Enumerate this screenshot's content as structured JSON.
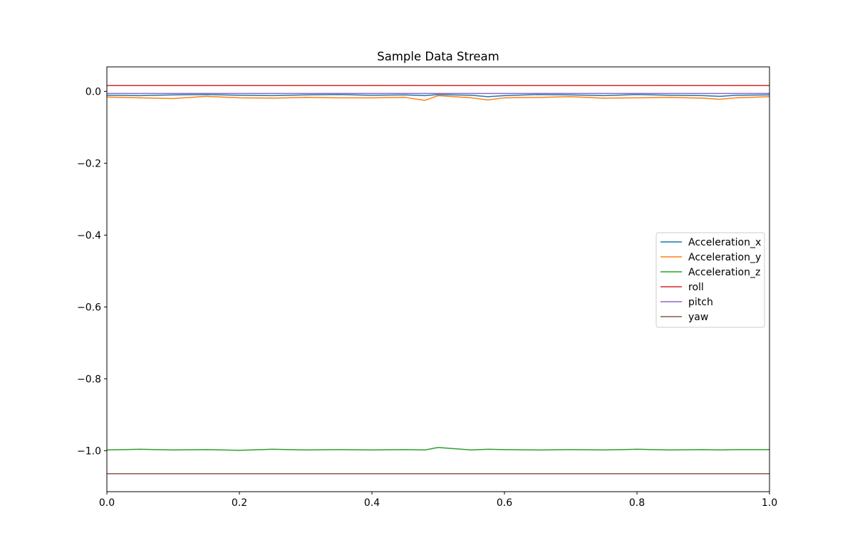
{
  "chart_data": {
    "type": "line",
    "title": "Sample Data Stream",
    "xlabel": "",
    "ylabel": "",
    "xlim": [
      0.0,
      1.0
    ],
    "ylim": [
      -1.114,
      0.068
    ],
    "xticks": [
      0.0,
      0.2,
      0.4,
      0.6,
      0.8,
      1.0
    ],
    "xtick_labels": [
      "0.0",
      "0.2",
      "0.4",
      "0.6",
      "0.8",
      "1.0"
    ],
    "yticks": [
      0.0,
      -0.2,
      -0.4,
      -0.6,
      -0.8,
      -1.0
    ],
    "ytick_labels": [
      "0.0",
      "−0.2",
      "−0.4",
      "−0.6",
      "−0.8",
      "−1.0"
    ],
    "grid": false,
    "legend_position": "center-right",
    "x": [
      0.0,
      0.05,
      0.1,
      0.15,
      0.2,
      0.25,
      0.3,
      0.35,
      0.4,
      0.45,
      0.48,
      0.5,
      0.55,
      0.575,
      0.6,
      0.65,
      0.7,
      0.75,
      0.8,
      0.85,
      0.9,
      0.925,
      0.95,
      1.0
    ],
    "series": [
      {
        "name": "Acceleration_x",
        "color": "#1f77b4",
        "values": [
          -0.011,
          -0.012,
          -0.01,
          -0.009,
          -0.011,
          -0.012,
          -0.01,
          -0.009,
          -0.011,
          -0.01,
          -0.012,
          -0.009,
          -0.011,
          -0.015,
          -0.012,
          -0.009,
          -0.01,
          -0.012,
          -0.009,
          -0.011,
          -0.012,
          -0.014,
          -0.011,
          -0.01
        ]
      },
      {
        "name": "Acceleration_y",
        "color": "#ff7f0e",
        "values": [
          -0.016,
          -0.018,
          -0.02,
          -0.014,
          -0.018,
          -0.019,
          -0.017,
          -0.018,
          -0.018,
          -0.017,
          -0.025,
          -0.012,
          -0.018,
          -0.024,
          -0.018,
          -0.017,
          -0.015,
          -0.019,
          -0.018,
          -0.017,
          -0.019,
          -0.022,
          -0.018,
          -0.015
        ]
      },
      {
        "name": "Acceleration_z",
        "color": "#2ca02c",
        "values": [
          -0.998,
          -0.996,
          -0.998,
          -0.997,
          -0.999,
          -0.996,
          -0.998,
          -0.997,
          -0.998,
          -0.997,
          -0.998,
          -0.991,
          -0.998,
          -0.996,
          -0.997,
          -0.998,
          -0.997,
          -0.998,
          -0.996,
          -0.998,
          -0.997,
          -0.998,
          -0.997,
          -0.997
        ]
      },
      {
        "name": "roll",
        "color": "#d62728",
        "values": [
          0.016,
          0.016,
          0.016,
          0.016,
          0.016,
          0.016,
          0.016,
          0.016,
          0.016,
          0.016,
          0.016,
          0.016,
          0.016,
          0.016,
          0.016,
          0.016,
          0.016,
          0.016,
          0.016,
          0.016,
          0.016,
          0.016,
          0.016,
          0.016
        ]
      },
      {
        "name": "pitch",
        "color": "#9467bd",
        "values": [
          -0.006,
          -0.006,
          -0.006,
          -0.006,
          -0.006,
          -0.006,
          -0.006,
          -0.006,
          -0.006,
          -0.006,
          -0.006,
          -0.006,
          -0.006,
          -0.006,
          -0.006,
          -0.006,
          -0.006,
          -0.006,
          -0.006,
          -0.006,
          -0.006,
          -0.006,
          -0.006,
          -0.006
        ]
      },
      {
        "name": "yaw",
        "color": "#8c564b",
        "values": [
          -1.064,
          -1.064,
          -1.064,
          -1.064,
          -1.064,
          -1.064,
          -1.064,
          -1.064,
          -1.064,
          -1.064,
          -1.064,
          -1.064,
          -1.064,
          -1.064,
          -1.064,
          -1.064,
          -1.064,
          -1.064,
          -1.064,
          -1.064,
          -1.064,
          -1.064,
          -1.064,
          -1.064
        ]
      }
    ]
  }
}
